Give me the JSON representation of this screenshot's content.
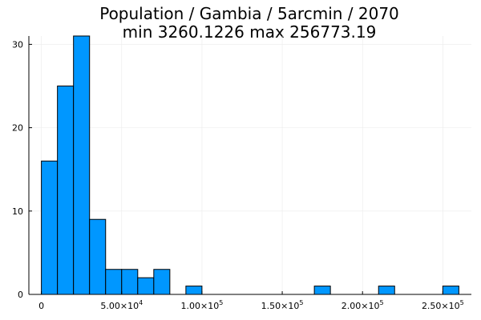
{
  "chart_data": {
    "type": "bar",
    "title": "Population / Gambia / 5arcmin / 2070",
    "subtitle": "min 3260.1226  max 256773.19",
    "xlabel": "",
    "ylabel": "",
    "bin_width": 10000,
    "bins": [
      {
        "x0": 0,
        "x1": 10000,
        "count": 16
      },
      {
        "x0": 10000,
        "x1": 20000,
        "count": 25
      },
      {
        "x0": 20000,
        "x1": 30000,
        "count": 31
      },
      {
        "x0": 30000,
        "x1": 40000,
        "count": 9
      },
      {
        "x0": 40000,
        "x1": 50000,
        "count": 3
      },
      {
        "x0": 50000,
        "x1": 60000,
        "count": 3
      },
      {
        "x0": 60000,
        "x1": 70000,
        "count": 2
      },
      {
        "x0": 70000,
        "x1": 80000,
        "count": 3
      },
      {
        "x0": 90000,
        "x1": 100000,
        "count": 1
      },
      {
        "x0": 170000,
        "x1": 180000,
        "count": 1
      },
      {
        "x0": 210000,
        "x1": 220000,
        "count": 1
      },
      {
        "x0": 250000,
        "x1": 260000,
        "count": 1
      }
    ],
    "xlim": [
      -7800,
      267800
    ],
    "ylim": [
      0,
      31
    ],
    "x_ticks": [
      {
        "value": 0,
        "mantissa": "0",
        "exp": ""
      },
      {
        "value": 50000,
        "mantissa": "5.00×10",
        "exp": "4"
      },
      {
        "value": 100000,
        "mantissa": "1.00×10",
        "exp": "5"
      },
      {
        "value": 150000,
        "mantissa": "1.50×10",
        "exp": "5"
      },
      {
        "value": 200000,
        "mantissa": "2.00×10",
        "exp": "5"
      },
      {
        "value": 250000,
        "mantissa": "2.50×10",
        "exp": "5"
      }
    ],
    "y_ticks": [
      {
        "value": 0,
        "label": "0"
      },
      {
        "value": 10,
        "label": "10"
      },
      {
        "value": 20,
        "label": "20"
      },
      {
        "value": 30,
        "label": "30"
      }
    ],
    "grid": true,
    "legend": "none",
    "bar_color": "#0097ff",
    "bar_edge_color": "#000000",
    "grid_color": "#ebebeb"
  }
}
